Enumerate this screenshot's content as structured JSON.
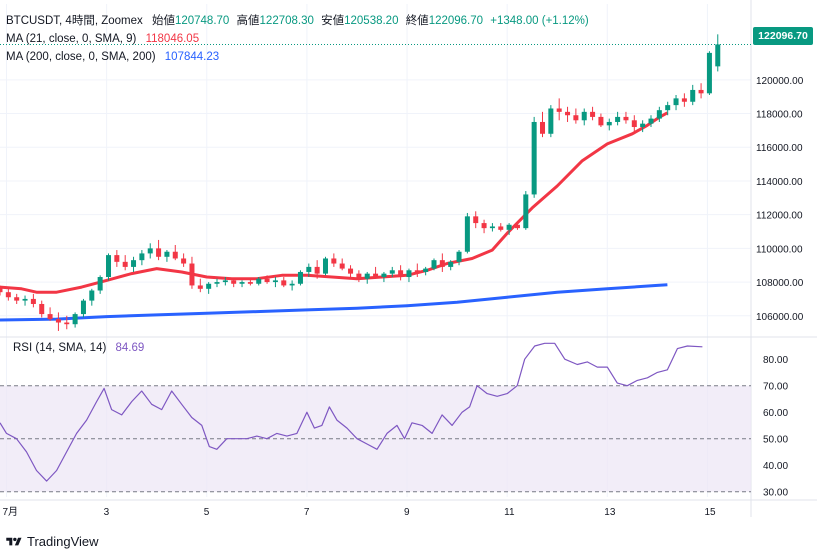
{
  "header": {
    "symbol": "BTCUSDT, 4時間, Zoomex",
    "open_label": "始値",
    "open": "120748.70",
    "high_label": "高値",
    "high": "122708.30",
    "low_label": "安値",
    "low": "120538.20",
    "close_label": "終値",
    "close": "122096.70",
    "change": "+1348.00 (+1.12%)"
  },
  "ma_legend": [
    {
      "label": "MA (21, close, 0, SMA, 9)",
      "value": "118046.05",
      "color": "#f23645"
    },
    {
      "label": "MA (200, close, 0, SMA, 200)",
      "value": "107844.23",
      "color": "#2962ff"
    }
  ],
  "rsi_legend": {
    "label": "RSI (14, SMA, 14)",
    "value": "84.69",
    "color": "#7e57c2"
  },
  "price_tag": "122096.70",
  "brand": "TradingView",
  "colors": {
    "up": "#089981",
    "down": "#f23645",
    "ma21": "#f23645",
    "ma200": "#2962ff",
    "rsi": "#7e57c2",
    "rsi_band": "#ede7f6",
    "grid": "#f0f3fa"
  },
  "chart_data": [
    {
      "type": "candlestick",
      "title": "BTCUSDT, 4時間, Zoomex",
      "x_tick_labels": [
        "7月",
        "3",
        "5",
        "7",
        "9",
        "11",
        "13",
        "15"
      ],
      "x_ticks_day": [
        1,
        3,
        5,
        7,
        9,
        11,
        13,
        15
      ],
      "y_tick_labels": [
        "106000.00",
        "108000.00",
        "110000.00",
        "112000.00",
        "114000.00",
        "116000.00",
        "118000.00",
        "120000.00"
      ],
      "ylim": [
        104800,
        124500
      ],
      "x_range_day": [
        0.87,
        15.87
      ],
      "candle_step_day": 0.1667,
      "candles": [
        [
          107700,
          107800,
          107200,
          107400
        ],
        [
          107400,
          107600,
          106900,
          107100
        ],
        [
          107100,
          107300,
          106700,
          106900
        ],
        [
          106900,
          107200,
          106600,
          107000
        ],
        [
          107000,
          107300,
          106500,
          106700
        ],
        [
          106700,
          106900,
          105900,
          106100
        ],
        [
          106100,
          106500,
          105700,
          105800
        ],
        [
          105800,
          106200,
          105100,
          105600
        ],
        [
          105600,
          106000,
          105200,
          105500
        ],
        [
          105500,
          106200,
          105300,
          106100
        ],
        [
          106100,
          107000,
          105900,
          106900
        ],
        [
          106900,
          107600,
          106600,
          107500
        ],
        [
          107500,
          108400,
          107300,
          108300
        ],
        [
          108300,
          109700,
          108100,
          109600
        ],
        [
          109600,
          109900,
          108900,
          109200
        ],
        [
          109200,
          109600,
          108700,
          108900
        ],
        [
          108900,
          109500,
          108600,
          109300
        ],
        [
          109300,
          109900,
          109000,
          109700
        ],
        [
          109700,
          110300,
          109400,
          110000
        ],
        [
          110000,
          110500,
          109300,
          109500
        ],
        [
          109500,
          109900,
          109200,
          109800
        ],
        [
          109800,
          110200,
          109300,
          109400
        ],
        [
          109400,
          109700,
          108900,
          109100
        ],
        [
          109100,
          109500,
          107600,
          107800
        ],
        [
          107800,
          108200,
          107400,
          107600
        ],
        [
          107600,
          108000,
          107300,
          107900
        ],
        [
          107900,
          108200,
          107700,
          108000
        ],
        [
          108000,
          108300,
          107800,
          108100
        ],
        [
          108100,
          108200,
          107700,
          107900
        ],
        [
          107900,
          108100,
          107700,
          108000
        ],
        [
          108000,
          108200,
          107800,
          107900
        ],
        [
          107900,
          108300,
          107800,
          108200
        ],
        [
          108200,
          108400,
          107900,
          108000
        ],
        [
          108000,
          108300,
          107700,
          108100
        ],
        [
          108100,
          108300,
          107700,
          107800
        ],
        [
          107800,
          108100,
          107500,
          107900
        ],
        [
          107900,
          108700,
          107800,
          108600
        ],
        [
          108600,
          109100,
          108300,
          108900
        ],
        [
          108900,
          109300,
          108200,
          108500
        ],
        [
          108500,
          109500,
          108400,
          109400
        ],
        [
          109400,
          109700,
          108900,
          109100
        ],
        [
          109100,
          109400,
          108700,
          108800
        ],
        [
          108800,
          109000,
          108300,
          108500
        ],
        [
          108500,
          108700,
          108000,
          108200
        ],
        [
          108200,
          108600,
          107900,
          108500
        ],
        [
          108500,
          108900,
          108200,
          108300
        ],
        [
          108300,
          108600,
          108000,
          108500
        ],
        [
          108500,
          108900,
          108300,
          108700
        ],
        [
          108700,
          109000,
          108100,
          108300
        ],
        [
          108300,
          108800,
          108000,
          108700
        ],
        [
          108700,
          109100,
          108300,
          108600
        ],
        [
          108600,
          108900,
          108400,
          108800
        ],
        [
          108800,
          109400,
          108700,
          109300
        ],
        [
          109300,
          109700,
          108600,
          108900
        ],
        [
          108900,
          109300,
          108700,
          109200
        ],
        [
          109200,
          109900,
          109000,
          109800
        ],
        [
          109800,
          112100,
          109700,
          111900
        ],
        [
          111900,
          112200,
          111200,
          111500
        ],
        [
          111500,
          111700,
          110900,
          111200
        ],
        [
          111200,
          111500,
          111000,
          111300
        ],
        [
          111300,
          111500,
          111000,
          111100
        ],
        [
          111100,
          111500,
          110800,
          111400
        ],
        [
          111400,
          111600,
          111100,
          111200
        ],
        [
          111200,
          113400,
          111100,
          113200
        ],
        [
          113200,
          117800,
          113000,
          117500
        ],
        [
          117500,
          118100,
          116600,
          116800
        ],
        [
          116800,
          118500,
          116600,
          118300
        ],
        [
          118300,
          118900,
          117600,
          118100
        ],
        [
          118100,
          118400,
          117500,
          117900
        ],
        [
          117900,
          118300,
          117400,
          117600
        ],
        [
          117600,
          118300,
          117300,
          118100
        ],
        [
          118100,
          118400,
          117600,
          117800
        ],
        [
          117800,
          118000,
          117200,
          117300
        ],
        [
          117300,
          117700,
          117000,
          117500
        ],
        [
          117500,
          118100,
          117300,
          117800
        ],
        [
          117800,
          118100,
          117400,
          117600
        ],
        [
          117600,
          117900,
          116900,
          117200
        ],
        [
          117200,
          117600,
          116900,
          117400
        ],
        [
          117400,
          117900,
          117200,
          117700
        ],
        [
          117700,
          118400,
          117500,
          118200
        ],
        [
          118200,
          118700,
          117900,
          118500
        ],
        [
          118500,
          119100,
          118200,
          118900
        ],
        [
          118900,
          119200,
          118400,
          118700
        ],
        [
          118700,
          119700,
          118500,
          119400
        ],
        [
          119400,
          119800,
          118900,
          119200
        ],
        [
          119200,
          121700,
          119100,
          121600
        ],
        [
          120800,
          122700,
          120500,
          122100
        ]
      ],
      "ma21": [
        [
          0.87,
          107700
        ],
        [
          1.3,
          107600
        ],
        [
          1.6,
          107400
        ],
        [
          2.0,
          107400
        ],
        [
          2.5,
          107700
        ],
        [
          3.0,
          108100
        ],
        [
          3.5,
          108500
        ],
        [
          4.0,
          108800
        ],
        [
          4.5,
          108600
        ],
        [
          5.0,
          108300
        ],
        [
          5.5,
          108200
        ],
        [
          6.0,
          108200
        ],
        [
          6.5,
          108400
        ],
        [
          7.0,
          108400
        ],
        [
          7.5,
          108300
        ],
        [
          8.0,
          108200
        ],
        [
          8.5,
          108300
        ],
        [
          9.0,
          108400
        ],
        [
          9.4,
          108700
        ],
        [
          9.8,
          109100
        ],
        [
          10.3,
          109400
        ],
        [
          10.7,
          109900
        ],
        [
          11.0,
          110900
        ],
        [
          11.5,
          112400
        ],
        [
          12.0,
          113700
        ],
        [
          12.5,
          115200
        ],
        [
          13.0,
          116200
        ],
        [
          13.5,
          116800
        ],
        [
          13.8,
          117300
        ],
        [
          14.05,
          117800
        ],
        [
          14.2,
          118046
        ]
      ],
      "ma200": [
        [
          0.87,
          105750
        ],
        [
          2.0,
          105800
        ],
        [
          3.0,
          105950
        ],
        [
          4.0,
          106050
        ],
        [
          5.0,
          106150
        ],
        [
          6.0,
          106250
        ],
        [
          7.0,
          106350
        ],
        [
          8.0,
          106450
        ],
        [
          9.0,
          106600
        ],
        [
          10.0,
          106800
        ],
        [
          11.0,
          107100
        ],
        [
          12.0,
          107400
        ],
        [
          13.0,
          107600
        ],
        [
          14.0,
          107800
        ],
        [
          14.2,
          107844
        ]
      ]
    },
    {
      "type": "line",
      "title": "RSI (14, SMA, 14)",
      "y_tick_labels": [
        "30.00",
        "40.00",
        "50.00",
        "60.00",
        "70.00",
        "80.00"
      ],
      "ylim": [
        28,
        88
      ],
      "band": [
        30,
        70
      ],
      "midline": 50,
      "rsi": [
        [
          0.87,
          56
        ],
        [
          1.0,
          52
        ],
        [
          1.2,
          50
        ],
        [
          1.4,
          45
        ],
        [
          1.6,
          38
        ],
        [
          1.8,
          34
        ],
        [
          2.0,
          38
        ],
        [
          2.2,
          45
        ],
        [
          2.4,
          52
        ],
        [
          2.6,
          57
        ],
        [
          2.8,
          64
        ],
        [
          2.95,
          69
        ],
        [
          3.1,
          61
        ],
        [
          3.3,
          59
        ],
        [
          3.5,
          64
        ],
        [
          3.7,
          68
        ],
        [
          3.9,
          63
        ],
        [
          4.1,
          61
        ],
        [
          4.3,
          68
        ],
        [
          4.5,
          63
        ],
        [
          4.7,
          58
        ],
        [
          4.9,
          55
        ],
        [
          5.05,
          47
        ],
        [
          5.2,
          46
        ],
        [
          5.4,
          50
        ],
        [
          5.6,
          50
        ],
        [
          5.8,
          50
        ],
        [
          6.0,
          51
        ],
        [
          6.2,
          50
        ],
        [
          6.4,
          52
        ],
        [
          6.6,
          51
        ],
        [
          6.8,
          52
        ],
        [
          7.0,
          60
        ],
        [
          7.15,
          54
        ],
        [
          7.3,
          55
        ],
        [
          7.45,
          62
        ],
        [
          7.6,
          57
        ],
        [
          7.8,
          54
        ],
        [
          8.0,
          50
        ],
        [
          8.2,
          48
        ],
        [
          8.4,
          46
        ],
        [
          8.6,
          52
        ],
        [
          8.8,
          55
        ],
        [
          8.95,
          50
        ],
        [
          9.1,
          56
        ],
        [
          9.3,
          55
        ],
        [
          9.5,
          52
        ],
        [
          9.7,
          59
        ],
        [
          9.9,
          55
        ],
        [
          10.1,
          60
        ],
        [
          10.25,
          62
        ],
        [
          10.4,
          70
        ],
        [
          10.6,
          67
        ],
        [
          10.8,
          66
        ],
        [
          11.0,
          67
        ],
        [
          11.2,
          70
        ],
        [
          11.35,
          80
        ],
        [
          11.55,
          85
        ],
        [
          11.75,
          86
        ],
        [
          11.95,
          86
        ],
        [
          12.15,
          80
        ],
        [
          12.4,
          78
        ],
        [
          12.6,
          79
        ],
        [
          12.8,
          77
        ],
        [
          13.0,
          77
        ],
        [
          13.2,
          71
        ],
        [
          13.4,
          70
        ],
        [
          13.6,
          72
        ],
        [
          13.8,
          73
        ],
        [
          14.0,
          75
        ],
        [
          14.2,
          76
        ],
        [
          14.3,
          80
        ],
        [
          14.4,
          84
        ],
        [
          14.6,
          85
        ],
        [
          14.9,
          84.69
        ]
      ]
    }
  ]
}
